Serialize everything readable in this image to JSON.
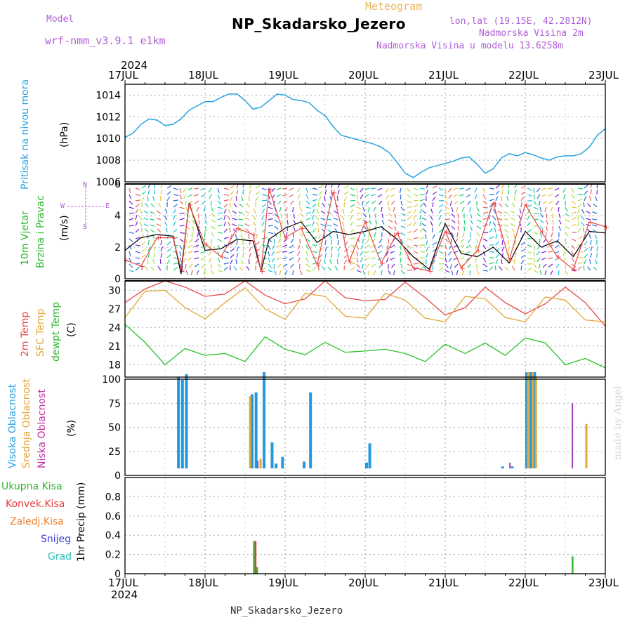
{
  "header": {
    "model_label": "Model",
    "model_name": "wrf-nmm_v3.9.1 e1km",
    "meteogram_label": "Meteogram",
    "station": "NP_Skadarsko_Jezero",
    "lonlat": "lon,lat (19.15E, 42.2812N)",
    "elevation": "Nadmorska Visina 2m",
    "model_elevation": "Nadmorska Visina u modelu 13.6258m"
  },
  "footer": {
    "station": "NP_Skadarsko_Jezero",
    "credit": "made by Angel"
  },
  "time_axis": {
    "year": "2024",
    "labels": [
      "17JUL",
      "18JUL",
      "19JUL",
      "20JUL",
      "21JUL",
      "22JUL",
      "23JUL"
    ]
  },
  "panels": {
    "pressure": {
      "ylabel": "Pritisak na nivou mora",
      "unit": "(hPa)"
    },
    "wind": {
      "ylabel1": "10m Vjetar",
      "ylabel2": "Brzina i Pravac",
      "unit": "(m/s)",
      "compass": "N",
      "compass_w": "W",
      "compass_e": "E",
      "compass_s": "S"
    },
    "temp": {
      "ylabel1": "2m Temp",
      "ylabel2": "SFC Temp",
      "ylabel3": "dewpt Temp",
      "unit": "(C)"
    },
    "cloud": {
      "ylabel1": "Visoka Oblacnost",
      "ylabel2": "Srednja Oblacnost",
      "ylabel3": "Niska Oblacnost",
      "unit": "(%)"
    },
    "precip": {
      "legend": [
        "Ukupna Kisa",
        "Konvek.Kisa",
        "Zaledj.Kisa",
        "Snijeg",
        "Grad"
      ],
      "ylabel": "1hr Precip (mm)"
    }
  },
  "colors": {
    "pressure": "#29a3e0",
    "temp2m": "#e84a4a",
    "sfc": "#e0a83a",
    "dew": "#29c22a",
    "high_cloud": "#2299dd",
    "mid_cloud": "#e0a83a",
    "low_cloud": "#a040c0",
    "rain_total": "#2eb82e",
    "rain_conv": "#e83c3c",
    "freezing": "#f08030",
    "snow": "#3a3ad8",
    "hail": "#28c0b8"
  },
  "chart_data": [
    {
      "type": "line",
      "title": "Pritisak na nivou mora",
      "unit": "hPa",
      "ylim": [
        1006,
        1015
      ],
      "yticks": [
        1006,
        1008,
        1010,
        1012,
        1014
      ],
      "x_days": [
        0,
        0.1,
        0.2,
        0.3,
        0.4,
        0.5,
        0.6,
        0.7,
        0.8,
        0.9,
        1,
        1.1,
        1.2,
        1.3,
        1.4,
        1.5,
        1.6,
        1.7,
        1.8,
        1.9,
        2,
        2.1,
        2.2,
        2.3,
        2.4,
        2.5,
        2.6,
        2.7,
        2.8,
        2.9,
        3,
        3.1,
        3.2,
        3.3,
        3.4,
        3.5,
        3.6,
        3.7,
        3.8,
        3.9,
        4,
        4.1,
        4.2,
        4.3,
        4.4,
        4.5,
        4.6,
        4.7,
        4.8,
        4.9,
        5,
        5.1,
        5.2,
        5.3,
        5.4,
        5.5,
        5.6,
        5.7,
        5.8,
        5.9,
        6
      ],
      "series": [
        {
          "name": "Pritisak",
          "values": [
            1010.1,
            1010.5,
            1011.3,
            1011.8,
            1011.7,
            1011.2,
            1011.3,
            1011.8,
            1012.6,
            1013.0,
            1013.4,
            1013.4,
            1013.8,
            1014.1,
            1014.1,
            1013.5,
            1012.7,
            1012.9,
            1013.5,
            1014.1,
            1014.0,
            1013.6,
            1013.5,
            1013.3,
            1012.6,
            1012.1,
            1011.1,
            1010.3,
            1010.1,
            1009.9,
            1009.7,
            1009.5,
            1009.2,
            1008.7,
            1007.8,
            1006.8,
            1006.4,
            1006.9,
            1007.3,
            1007.5,
            1007.7,
            1007.9,
            1008.2,
            1008.3,
            1007.6,
            1006.8,
            1007.2,
            1008.2,
            1008.6,
            1008.4,
            1008.7,
            1008.5,
            1008.2,
            1008.0,
            1008.3,
            1008.4,
            1008.4,
            1008.6,
            1009.2,
            1010.3,
            1010.9
          ]
        }
      ]
    },
    {
      "type": "line",
      "title": "10m Vjetar Brzina i Pravac",
      "unit": "m/s",
      "ylim": [
        0,
        6
      ],
      "yticks": [
        0,
        2,
        4,
        6
      ],
      "x_days": [
        0,
        0.2,
        0.4,
        0.6,
        0.7,
        0.8,
        1,
        1.2,
        1.4,
        1.6,
        1.7,
        1.8,
        2,
        2.2,
        2.4,
        2.6,
        2.8,
        3,
        3.2,
        3.4,
        3.6,
        3.8,
        4,
        4.2,
        4.4,
        4.6,
        4.8,
        5,
        5.2,
        5.4,
        5.6,
        5.8,
        6
      ],
      "series": [
        {
          "name": "brzina",
          "values": [
            1.8,
            2.6,
            2.8,
            2.7,
            0.3,
            4.8,
            1.8,
            1.9,
            2.5,
            2.4,
            0.5,
            2.5,
            3.2,
            3.6,
            2.3,
            3.0,
            2.8,
            3.0,
            3.3,
            2.5,
            1.4,
            0.6,
            3.5,
            1.6,
            1.4,
            2.0,
            1.0,
            3.0,
            2.0,
            2.4,
            1.4,
            3.0,
            2.9
          ]
        },
        {
          "name": "udari",
          "values": [
            1.2,
            0.8,
            2.6,
            2.6,
            0.6,
            4.7,
            2.2,
            1.4,
            3.2,
            2.8,
            0.5,
            5.7,
            2.6,
            3.2,
            0.9,
            5.5,
            1.1,
            3.6,
            1.0,
            2.9,
            0.7,
            0.5,
            3.0,
            0.7,
            1.8,
            4.8,
            1.2,
            4.7,
            3.0,
            1.4,
            0.6,
            3.6,
            3.3
          ]
        }
      ]
    },
    {
      "type": "line",
      "title": "Temperatura",
      "unit": "C",
      "ylim": [
        16,
        31.5
      ],
      "yticks": [
        18,
        21,
        24,
        27,
        30
      ],
      "x_days": [
        0,
        0.25,
        0.5,
        0.75,
        1,
        1.25,
        1.5,
        1.75,
        2,
        2.25,
        2.5,
        2.75,
        3,
        3.25,
        3.5,
        3.75,
        4,
        4.25,
        4.5,
        4.75,
        5,
        5.25,
        5.5,
        5.75,
        6
      ],
      "series": [
        {
          "name": "2m Temp",
          "values": [
            28.0,
            30.2,
            31.5,
            30.5,
            29.0,
            29.4,
            31.8,
            29.2,
            27.8,
            28.6,
            31.5,
            28.8,
            28.3,
            28.5,
            31.3,
            28.8,
            26.0,
            27.2,
            30.5,
            28.0,
            26.2,
            27.8,
            30.5,
            28.0,
            24.2
          ]
        },
        {
          "name": "SFC Temp",
          "values": [
            25.6,
            29.8,
            30.0,
            27.2,
            25.4,
            28.0,
            30.4,
            27.0,
            25.3,
            29.5,
            29.0,
            25.8,
            25.5,
            29.5,
            28.4,
            25.5,
            24.9,
            29.0,
            28.6,
            25.6,
            24.9,
            28.9,
            28.4,
            25.2,
            24.9
          ]
        },
        {
          "name": "dewpt Temp",
          "values": [
            24.5,
            21.6,
            18.0,
            20.6,
            19.5,
            19.8,
            18.5,
            22.5,
            20.5,
            19.6,
            21.6,
            20.0,
            20.2,
            20.5,
            19.8,
            18.5,
            21.3,
            19.8,
            21.5,
            19.5,
            22.3,
            21.5,
            18.0,
            19.0,
            17.5
          ]
        }
      ]
    },
    {
      "type": "bar",
      "title": "Oblacnost",
      "unit": "%",
      "ylim": [
        0,
        100
      ],
      "yticks": [
        0,
        25,
        50,
        75,
        100
      ],
      "series": [
        {
          "name": "Visoka Oblacnost",
          "x_days": [
            0.65,
            0.7,
            0.75,
            1.57,
            1.62,
            1.72,
            1.82,
            1.87,
            1.95,
            2.22,
            2.3,
            3.0,
            3.04,
            4.7,
            4.82,
            5.0,
            5.05,
            5.1
          ],
          "values": [
            95,
            92,
            98,
            77,
            79,
            100,
            27,
            5,
            12,
            7,
            79,
            6,
            26,
            2,
            2,
            100,
            100,
            100
          ]
        },
        {
          "name": "Srednja Oblacnost",
          "x_days": [
            1.55,
            1.68,
            5.02,
            5.08,
            5.12,
            5.75
          ],
          "values": [
            75,
            10,
            100,
            100,
            95,
            46
          ]
        },
        {
          "name": "Niska Oblacnost",
          "x_days": [
            1.65,
            4.8,
            5.58
          ],
          "values": [
            8,
            6,
            68
          ]
        }
      ]
    },
    {
      "type": "bar",
      "title": "1hr Precip",
      "unit": "mm",
      "ylim": [
        0,
        1.0
      ],
      "yticks": [
        0,
        0.2,
        0.4,
        0.6,
        0.8
      ],
      "series": [
        {
          "name": "Ukupna Kisa",
          "x_days": [
            1.6,
            1.64,
            5.58
          ],
          "values": [
            0.34,
            0.07,
            0.18
          ]
        },
        {
          "name": "Konvek.Kisa",
          "x_days": [
            1.62
          ],
          "values": [
            0.34
          ]
        }
      ]
    }
  ]
}
